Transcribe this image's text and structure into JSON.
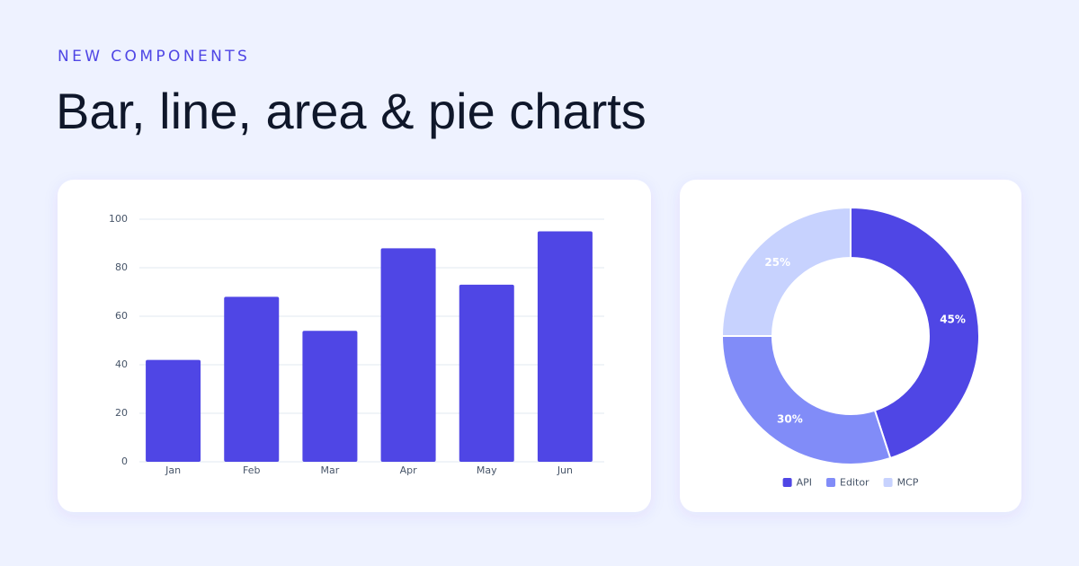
{
  "header": {
    "eyebrow": "NEW COMPONENTS",
    "title": "Bar, line, area & pie charts"
  },
  "chart_data": [
    {
      "type": "bar",
      "categories": [
        "Jan",
        "Feb",
        "Mar",
        "Apr",
        "May",
        "Jun"
      ],
      "values": [
        42,
        68,
        54,
        88,
        73,
        95
      ],
      "color": "#4f46e5",
      "ylim": [
        0,
        100
      ],
      "yticks": [
        0,
        20,
        40,
        60,
        80,
        100
      ],
      "grid": true
    },
    {
      "type": "pie",
      "categories": [
        "API",
        "Editor",
        "MCP"
      ],
      "values": [
        45,
        30,
        25
      ],
      "value_labels": [
        "45%",
        "30%",
        "25%"
      ],
      "colors": [
        "#4f46e5",
        "#818cf8",
        "#c7d2fe"
      ],
      "donut": true,
      "legend": "bottom"
    }
  ]
}
